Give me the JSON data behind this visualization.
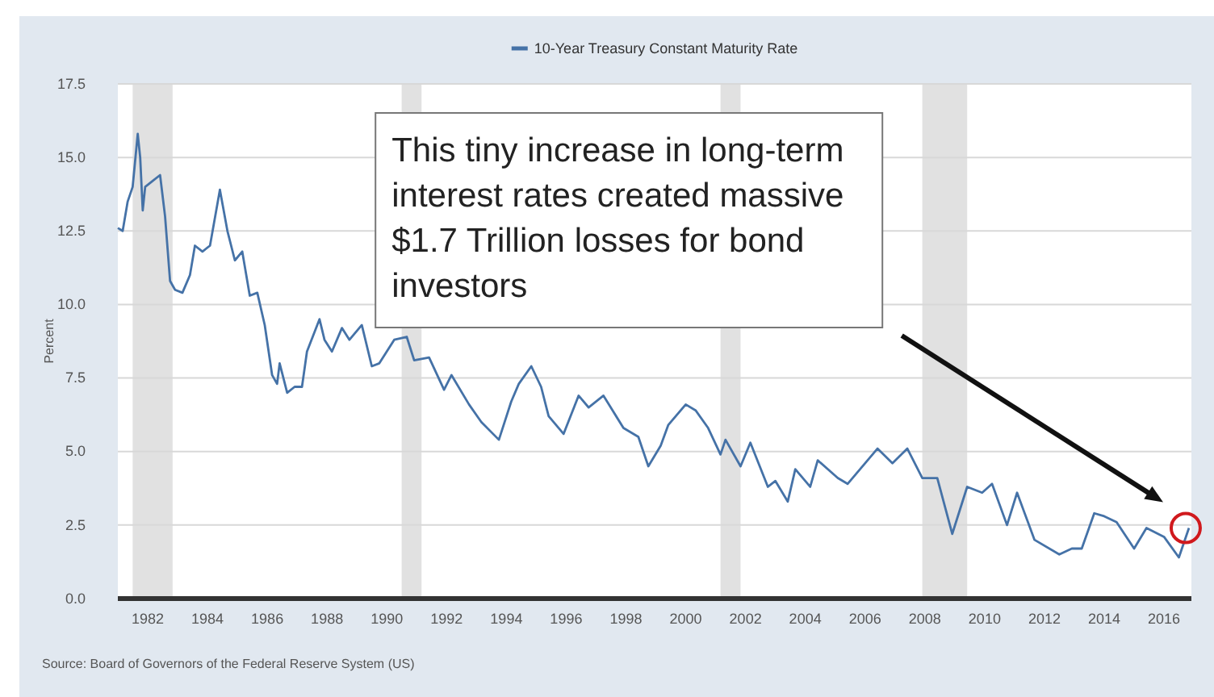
{
  "chart_data": {
    "type": "line",
    "ylabel": "Percent",
    "legend": "top",
    "grid": "y",
    "tick_labels": "xy",
    "xlim": [
      "1981-01",
      "2016-12"
    ],
    "xticks": [
      {
        "value": "1982",
        "label": "1982"
      },
      {
        "value": "1984",
        "label": "1984"
      },
      {
        "value": "1986",
        "label": "1986"
      },
      {
        "value": "1988",
        "label": "1988"
      },
      {
        "value": "1990",
        "label": "1990"
      },
      {
        "value": "1992",
        "label": "1992"
      },
      {
        "value": "1994",
        "label": "1994"
      },
      {
        "value": "1996",
        "label": "1996"
      },
      {
        "value": "1998",
        "label": "1998"
      },
      {
        "value": "2000",
        "label": "2000"
      },
      {
        "value": "2002",
        "label": "2002"
      },
      {
        "value": "2004",
        "label": "2004"
      },
      {
        "value": "2006",
        "label": "2006"
      },
      {
        "value": "2008",
        "label": "2008"
      },
      {
        "value": "2010",
        "label": "2010"
      },
      {
        "value": "2012",
        "label": "2012"
      },
      {
        "value": "2014",
        "label": "2014"
      },
      {
        "value": "2016",
        "label": "2016"
      }
    ],
    "ylim": [
      0,
      17.5
    ],
    "yticks": [
      {
        "value": 0,
        "label": "0.0"
      },
      {
        "value": 2.5,
        "label": "2.5"
      },
      {
        "value": 5,
        "label": "5.0"
      },
      {
        "value": 7.5,
        "label": "7.5"
      },
      {
        "value": 10,
        "label": "10.0"
      },
      {
        "value": 12.5,
        "label": "12.5"
      },
      {
        "value": 15,
        "label": "15.0"
      },
      {
        "value": 17.5,
        "label": "17.5"
      }
    ],
    "x": [
      "1981-01",
      "1981-03",
      "1981-05",
      "1981-07",
      "1981-09",
      "1981-10",
      "1981-11",
      "1981-12",
      "1982-03",
      "1982-06",
      "1982-08",
      "1982-10",
      "1982-12",
      "1983-03",
      "1983-06",
      "1983-08",
      "1983-11",
      "1984-02",
      "1984-06",
      "1984-09",
      "1984-12",
      "1985-03",
      "1985-06",
      "1985-09",
      "1985-12",
      "1986-03",
      "1986-05",
      "1986-06",
      "1986-09",
      "1986-12",
      "1987-03",
      "1987-05",
      "1987-10",
      "1987-12",
      "1988-03",
      "1988-07",
      "1988-10",
      "1989-03",
      "1989-07",
      "1989-10",
      "1990-04",
      "1990-09",
      "1990-12",
      "1991-06",
      "1991-12",
      "1992-03",
      "1992-10",
      "1993-03",
      "1993-10",
      "1994-03",
      "1994-06",
      "1994-11",
      "1995-03",
      "1995-06",
      "1995-12",
      "1996-06",
      "1996-10",
      "1997-04",
      "1997-12",
      "1998-06",
      "1998-10",
      "1999-03",
      "1999-06",
      "2000-01",
      "2000-05",
      "2000-10",
      "2001-03",
      "2001-05",
      "2001-11",
      "2002-03",
      "2002-10",
      "2003-01",
      "2003-06",
      "2003-09",
      "2004-03",
      "2004-06",
      "2005-02",
      "2005-06",
      "2006-06",
      "2006-12",
      "2007-06",
      "2007-12",
      "2008-06",
      "2008-12",
      "2009-06",
      "2009-12",
      "2010-04",
      "2010-10",
      "2011-02",
      "2011-09",
      "2012-07",
      "2012-12",
      "2013-04",
      "2013-09",
      "2014-01",
      "2014-06",
      "2015-01",
      "2015-06",
      "2016-01",
      "2016-07",
      "2016-11"
    ],
    "series": [
      {
        "name": "10-Year Treasury Constant Maturity Rate",
        "color": "#4572a7",
        "values": [
          12.6,
          12.5,
          13.5,
          14.0,
          15.8,
          15.0,
          13.2,
          14.0,
          14.2,
          14.4,
          13.0,
          10.8,
          10.5,
          10.4,
          11.0,
          12.0,
          11.8,
          12.0,
          13.9,
          12.5,
          11.5,
          11.8,
          10.3,
          10.4,
          9.3,
          7.6,
          7.3,
          8.0,
          7.0,
          7.2,
          7.2,
          8.4,
          9.5,
          8.8,
          8.4,
          9.2,
          8.8,
          9.3,
          7.9,
          8.0,
          8.8,
          8.9,
          8.1,
          8.2,
          7.1,
          7.6,
          6.6,
          6.0,
          5.4,
          6.7,
          7.3,
          7.9,
          7.2,
          6.2,
          5.6,
          6.9,
          6.5,
          6.9,
          5.8,
          5.5,
          4.5,
          5.2,
          5.9,
          6.6,
          6.4,
          5.8,
          4.9,
          5.4,
          4.5,
          5.3,
          3.8,
          4.0,
          3.3,
          4.4,
          3.8,
          4.7,
          4.1,
          3.9,
          5.1,
          4.6,
          5.1,
          4.1,
          4.1,
          2.2,
          3.8,
          3.6,
          3.9,
          2.5,
          3.6,
          2.0,
          1.5,
          1.7,
          1.7,
          2.9,
          2.8,
          2.6,
          1.7,
          2.4,
          2.1,
          1.4,
          2.4
        ]
      }
    ],
    "bands": [
      {
        "axis": "x",
        "from": "1981-07",
        "to": "1982-11",
        "color": "#e1e1e1"
      },
      {
        "axis": "x",
        "from": "1990-07",
        "to": "1991-03",
        "color": "#e1e1e1"
      },
      {
        "axis": "x",
        "from": "2001-03",
        "to": "2001-11",
        "color": "#e1e1e1"
      },
      {
        "axis": "x",
        "from": "2007-12",
        "to": "2009-06",
        "color": "#e1e1e1"
      }
    ],
    "annotations": [
      "This tiny increase in long-term interest rates created massive $1.7 Trillion losses for bond investors",
      "Source: Board of Governors of the Federal Reserve System (US)"
    ]
  }
}
